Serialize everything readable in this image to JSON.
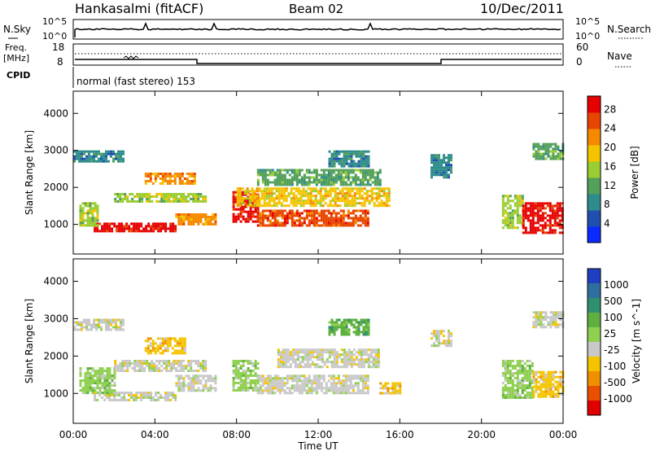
{
  "header": {
    "station": "Hankasalmi (fitACF)",
    "beam": "Beam 02",
    "date": "10/Dec/2011"
  },
  "noise_panel": {
    "left_label": "N.Sky",
    "right_label": "N.Search",
    "left_ticks": [
      "10^5",
      "10^0"
    ],
    "right_ticks": [
      "10^5",
      "10^0"
    ]
  },
  "freq_panel": {
    "left_label_1": "Freq.",
    "left_label_2": "[MHz]",
    "left_ticks": [
      "18",
      "8"
    ],
    "right_label": "Nave",
    "right_ticks": [
      "60",
      "0"
    ]
  },
  "cpid": {
    "label": "CPID",
    "program": "normal (fast stereo) 153"
  },
  "axes": {
    "xlabel": "Time UT",
    "ylabel": "Slant Range [km]",
    "x_ticks": [
      "00:00",
      "04:00",
      "08:00",
      "12:00",
      "16:00",
      "20:00",
      "00:00"
    ],
    "y_ticks": [
      "1000",
      "2000",
      "3000",
      "4000"
    ]
  },
  "power_colorbar": {
    "label": "Power [dB]",
    "ticks": [
      "4",
      "8",
      "12",
      "16",
      "20",
      "24",
      "28"
    ],
    "colors": [
      "#0a2aff",
      "#1f4fb0",
      "#2e8c8c",
      "#53a05a",
      "#9acd32",
      "#f5c400",
      "#f58a00",
      "#e84500",
      "#e60000"
    ]
  },
  "velocity_colorbar": {
    "label": "Velocity [m s^-1]",
    "ticks": [
      "1000",
      "500",
      "100",
      "25",
      "-25",
      "-100",
      "-500",
      "-1000"
    ],
    "colors": [
      "#1f3fc0",
      "#2f6fa0",
      "#2f8f6f",
      "#5fb040",
      "#8fd050",
      "#c8c8c8",
      "#f5c400",
      "#f09000",
      "#e85000",
      "#e00000"
    ]
  },
  "chart_data": [
    {
      "type": "heatmap",
      "name": "Power",
      "xlabel": "Time UT",
      "ylabel": "Slant Range [km]",
      "xlim": [
        0,
        24
      ],
      "ylim": [
        200,
        4600
      ],
      "colorbar_label": "Power [dB]",
      "colorbar_range": [
        0,
        30
      ],
      "regions": [
        {
          "t0": 1.0,
          "t1": 5.0,
          "r0": 800,
          "r1": 1050,
          "value": 28
        },
        {
          "t0": 0.3,
          "t1": 1.2,
          "r0": 1000,
          "r1": 1600,
          "value": 14
        },
        {
          "t0": 2.0,
          "t1": 6.5,
          "r0": 1600,
          "r1": 1850,
          "value": 16
        },
        {
          "t0": 3.5,
          "t1": 6.0,
          "r0": 2100,
          "r1": 2400,
          "value": 20
        },
        {
          "t0": 0.0,
          "t1": 2.5,
          "r0": 2700,
          "r1": 3000,
          "value": 8
        },
        {
          "t0": 5.0,
          "t1": 7.0,
          "r0": 1000,
          "r1": 1300,
          "value": 22
        },
        {
          "t0": 7.8,
          "t1": 9.0,
          "r0": 1100,
          "r1": 1900,
          "value": 28
        },
        {
          "t0": 9.0,
          "t1": 14.5,
          "r0": 950,
          "r1": 1400,
          "value": 26
        },
        {
          "t0": 8.0,
          "t1": 15.5,
          "r0": 1500,
          "r1": 2000,
          "value": 18
        },
        {
          "t0": 9.0,
          "t1": 15.0,
          "r0": 2100,
          "r1": 2500,
          "value": 10
        },
        {
          "t0": 12.5,
          "t1": 14.5,
          "r0": 2600,
          "r1": 3000,
          "value": 8
        },
        {
          "t0": 21.0,
          "t1": 22.0,
          "r0": 900,
          "r1": 1800,
          "value": 16
        },
        {
          "t0": 22.0,
          "t1": 24.0,
          "r0": 800,
          "r1": 1600,
          "value": 28
        },
        {
          "t0": 22.5,
          "t1": 24.0,
          "r0": 2800,
          "r1": 3200,
          "value": 12
        },
        {
          "t0": 17.5,
          "t1": 18.5,
          "r0": 2300,
          "r1": 2900,
          "value": 8
        }
      ]
    },
    {
      "type": "heatmap",
      "name": "Velocity",
      "xlabel": "Time UT",
      "ylabel": "Slant Range [km]",
      "xlim": [
        0,
        24
      ],
      "ylim": [
        200,
        4600
      ],
      "colorbar_label": "Velocity [m s^-1]",
      "colorbar_range": [
        -1000,
        1000
      ],
      "regions": [
        {
          "t0": 1.0,
          "t1": 5.0,
          "r0": 800,
          "r1": 1050,
          "value": 0
        },
        {
          "t0": 0.3,
          "t1": 2.0,
          "r0": 1000,
          "r1": 1700,
          "value": 100
        },
        {
          "t0": 2.0,
          "t1": 6.5,
          "r0": 1600,
          "r1": 1900,
          "value": 0
        },
        {
          "t0": 3.5,
          "t1": 5.5,
          "r0": 2100,
          "r1": 2500,
          "value": -300
        },
        {
          "t0": 0.0,
          "t1": 2.5,
          "r0": 2700,
          "r1": 3000,
          "value": 0
        },
        {
          "t0": 5.0,
          "t1": 7.0,
          "r0": 1100,
          "r1": 1500,
          "value": 0
        },
        {
          "t0": 7.8,
          "t1": 9.0,
          "r0": 1100,
          "r1": 1900,
          "value": 200
        },
        {
          "t0": 9.0,
          "t1": 14.5,
          "r0": 1000,
          "r1": 1500,
          "value": 0
        },
        {
          "t0": 10.0,
          "t1": 15.0,
          "r0": 1700,
          "r1": 2200,
          "value": 0
        },
        {
          "t0": 15.0,
          "t1": 16.0,
          "r0": 1000,
          "r1": 1300,
          "value": -300
        },
        {
          "t0": 12.5,
          "t1": 14.5,
          "r0": 2600,
          "r1": 3000,
          "value": 300
        },
        {
          "t0": 21.0,
          "t1": 22.5,
          "r0": 900,
          "r1": 1900,
          "value": 100
        },
        {
          "t0": 22.5,
          "t1": 24.0,
          "r0": 900,
          "r1": 1600,
          "value": -200
        },
        {
          "t0": 22.5,
          "t1": 24.0,
          "r0": 2800,
          "r1": 3200,
          "value": 0
        },
        {
          "t0": 17.5,
          "t1": 18.5,
          "r0": 2300,
          "r1": 2700,
          "value": 0
        }
      ]
    }
  ]
}
